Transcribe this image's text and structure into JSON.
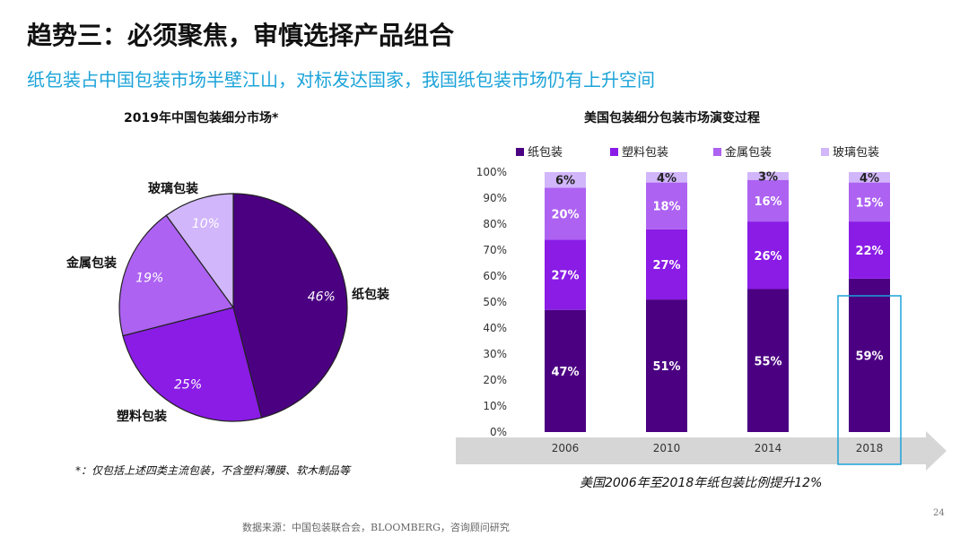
{
  "slide": {
    "title": "趋势三：必须聚焦，审慎选择产品组合",
    "subtitle": "纸包装占中国包装市场半壁江山，对标发达国家，我国纸包装市场仍有上升空间",
    "footnote": "*：仅包括上述四类主流包装，不含塑料薄膜、软木制品等",
    "caption": "美国2006年至2018年纸包装比例提升12%",
    "source": "数据来源：中国包装联合会，BLOOMBERG，咨询顾问研究",
    "page_number": "24"
  },
  "colors": {
    "paper": "#4b0082",
    "plastic": "#8a1ce6",
    "metal": "#ad62f2",
    "glass": "#d1b6fb",
    "highlight": "#1ba3d9",
    "arrow": "#d6d6d6"
  },
  "chart_data": [
    {
      "type": "pie",
      "title": "2019年中国包装细分市场*",
      "slices": [
        {
          "label": "纸包装",
          "value": 46,
          "value_label": "46%"
        },
        {
          "label": "塑料包装",
          "value": 25,
          "value_label": "25%"
        },
        {
          "label": "金属包装",
          "value": 19,
          "value_label": "19%"
        },
        {
          "label": "玻璃包装",
          "value": 10,
          "value_label": "10%"
        }
      ]
    },
    {
      "type": "bar",
      "stacked": true,
      "title": "美国包装细分包装市场演变过程",
      "categories": [
        "2006",
        "2010",
        "2014",
        "2018"
      ],
      "ylim": [
        0,
        100
      ],
      "yticks": [
        "0%",
        "10%",
        "20%",
        "30%",
        "40%",
        "50%",
        "60%",
        "70%",
        "80%",
        "90%",
        "100%"
      ],
      "legend_position": "top",
      "highlight_category": "2018",
      "series": [
        {
          "name": "纸包装",
          "values": [
            47,
            51,
            55,
            59
          ],
          "labels": [
            "47%",
            "51%",
            "55%",
            "59%"
          ]
        },
        {
          "name": "塑料包装",
          "values": [
            27,
            27,
            26,
            22
          ],
          "labels": [
            "27%",
            "27%",
            "26%",
            "22%"
          ]
        },
        {
          "name": "金属包装",
          "values": [
            20,
            18,
            16,
            15
          ],
          "labels": [
            "20%",
            "18%",
            "16%",
            "15%"
          ]
        },
        {
          "name": "玻璃包装",
          "values": [
            6,
            4,
            3,
            4
          ],
          "labels": [
            "6%",
            "4%",
            "3%",
            "4%"
          ]
        }
      ]
    }
  ]
}
